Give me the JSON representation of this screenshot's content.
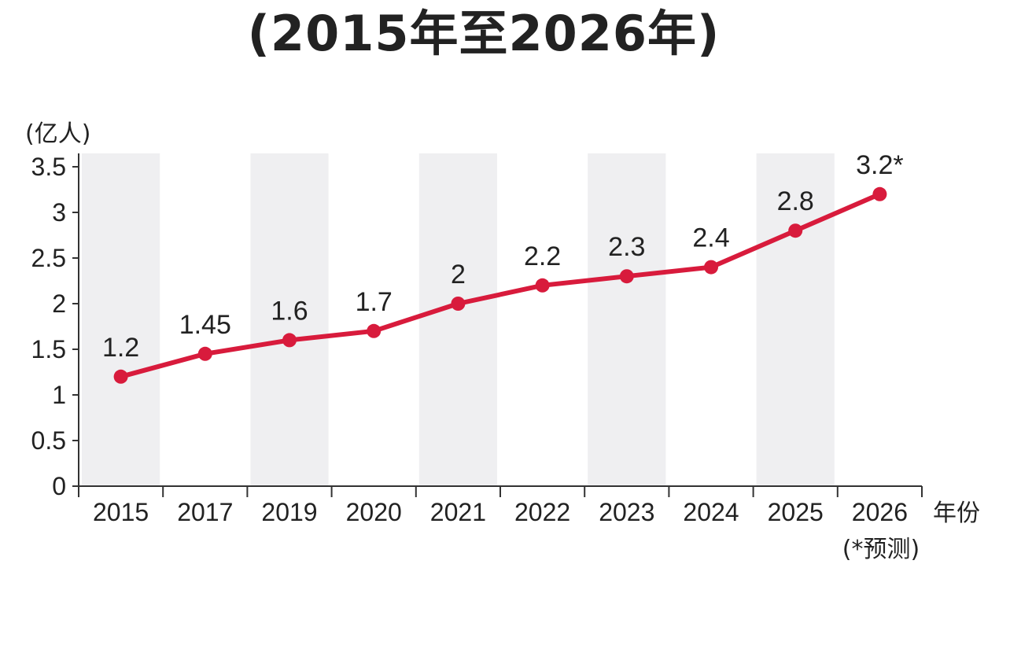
{
  "title": "(2015年至2026年)",
  "chart_data": {
    "type": "line",
    "title": "(2015年至2026年)",
    "ylabel": "(亿人)",
    "xlabel": "年份",
    "categories": [
      "2015",
      "2017",
      "2019",
      "2020",
      "2021",
      "2022",
      "2023",
      "2024",
      "2025",
      "2026"
    ],
    "series": [
      {
        "values": [
          1.2,
          1.45,
          1.6,
          1.7,
          2,
          2.2,
          2.3,
          2.4,
          2.8,
          3.2
        ],
        "labels": [
          "1.2",
          "1.45",
          "1.6",
          "1.7",
          "2",
          "2.2",
          "2.3",
          "2.4",
          "2.8",
          "3.2*"
        ]
      }
    ],
    "yticks": [
      "0",
      "0.5",
      "1",
      "1.5",
      "2",
      "2.5",
      "3",
      "3.5"
    ],
    "ylim": [
      0,
      3.5
    ],
    "note": "(*预测)",
    "grid": false,
    "line_color": "#d81b3c",
    "band_color": "#efeff1"
  }
}
